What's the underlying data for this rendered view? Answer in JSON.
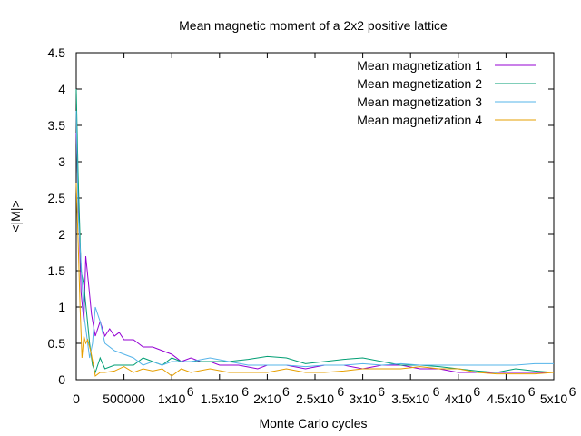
{
  "chart_data": {
    "type": "line",
    "title": "Mean magnetic moment of a 2x2 positive lattice",
    "xlabel": "Monte Carlo cycles",
    "ylabel": "<|M|>",
    "xlim": [
      0,
      5000000
    ],
    "ylim": [
      0,
      4.5
    ],
    "x_ticks": [
      0,
      500000,
      1000000,
      1500000,
      2000000,
      2500000,
      3000000,
      3500000,
      4000000,
      4500000,
      5000000
    ],
    "x_tick_labels": [
      "0",
      "500000",
      "1x10",
      "1.5x10",
      "2x10",
      "2.5x10",
      "3x10",
      "3.5x10",
      "4x10",
      "4.5x10",
      "5x10"
    ],
    "x_tick_exponent": "6",
    "y_ticks": [
      0,
      0.5,
      1,
      1.5,
      2,
      2.5,
      3,
      3.5,
      4,
      4.5
    ],
    "y_tick_labels": [
      "0",
      "0.5",
      "1",
      "1.5",
      "2",
      "2.5",
      "3",
      "3.5",
      "4",
      "4.5"
    ],
    "grid": false,
    "legend_position": "top-right",
    "series": [
      {
        "name": "Mean magnetization 1",
        "color": "#9400d3",
        "x": [
          0,
          20000,
          50000,
          80000,
          100000,
          130000,
          160000,
          200000,
          250000,
          300000,
          350000,
          400000,
          450000,
          500000,
          600000,
          700000,
          800000,
          900000,
          1000000,
          1100000,
          1200000,
          1300000,
          1400000,
          1500000,
          1700000,
          1900000,
          2000000,
          2200000,
          2400000,
          2600000,
          2800000,
          3000000,
          3200000,
          3400000,
          3600000,
          3800000,
          4000000,
          4200000,
          4400000,
          4600000,
          4800000,
          5000000
        ],
        "y": [
          3.4,
          2.6,
          1.2,
          0.8,
          1.7,
          1.3,
          0.9,
          0.6,
          0.8,
          0.6,
          0.7,
          0.6,
          0.65,
          0.55,
          0.55,
          0.45,
          0.45,
          0.4,
          0.35,
          0.25,
          0.3,
          0.25,
          0.25,
          0.2,
          0.2,
          0.15,
          0.2,
          0.2,
          0.15,
          0.2,
          0.2,
          0.15,
          0.2,
          0.2,
          0.15,
          0.15,
          0.1,
          0.1,
          0.1,
          0.1,
          0.1,
          0.1
        ]
      },
      {
        "name": "Mean magnetization 2",
        "color": "#009e73",
        "x": [
          0,
          20000,
          50000,
          80000,
          110000,
          140000,
          170000,
          200000,
          250000,
          300000,
          400000,
          500000,
          600000,
          700000,
          800000,
          900000,
          1000000,
          1100000,
          1200000,
          1400000,
          1600000,
          1800000,
          2000000,
          2200000,
          2400000,
          2600000,
          2800000,
          3000000,
          3200000,
          3400000,
          3600000,
          3800000,
          4000000,
          4200000,
          4400000,
          4600000,
          4800000,
          5000000
        ],
        "y": [
          4.0,
          2.8,
          1.5,
          1.3,
          0.9,
          0.5,
          0.2,
          0.1,
          0.3,
          0.15,
          0.2,
          0.2,
          0.2,
          0.3,
          0.25,
          0.2,
          0.3,
          0.25,
          0.25,
          0.25,
          0.25,
          0.28,
          0.32,
          0.3,
          0.22,
          0.25,
          0.28,
          0.3,
          0.25,
          0.2,
          0.2,
          0.18,
          0.15,
          0.12,
          0.1,
          0.15,
          0.12,
          0.1
        ]
      },
      {
        "name": "Mean magnetization 3",
        "color": "#56b4e9",
        "x": [
          0,
          20000,
          50000,
          80000,
          110000,
          140000,
          170000,
          200000,
          250000,
          300000,
          400000,
          500000,
          600000,
          700000,
          800000,
          900000,
          1000000,
          1200000,
          1400000,
          1600000,
          1800000,
          2000000,
          2200000,
          2400000,
          2600000,
          2800000,
          3000000,
          3200000,
          3400000,
          3600000,
          3800000,
          4000000,
          4200000,
          4400000,
          4600000,
          4800000,
          5000000
        ],
        "y": [
          3.7,
          2.3,
          1.6,
          0.9,
          0.6,
          0.3,
          0.5,
          1.0,
          0.8,
          0.5,
          0.4,
          0.35,
          0.3,
          0.2,
          0.25,
          0.2,
          0.25,
          0.25,
          0.3,
          0.25,
          0.2,
          0.2,
          0.2,
          0.18,
          0.2,
          0.2,
          0.22,
          0.2,
          0.22,
          0.2,
          0.2,
          0.2,
          0.2,
          0.2,
          0.2,
          0.22,
          0.22
        ]
      },
      {
        "name": "Mean magnetization 4",
        "color": "#e69f00",
        "x": [
          0,
          20000,
          40000,
          60000,
          80000,
          100000,
          120000,
          150000,
          180000,
          200000,
          250000,
          300000,
          400000,
          500000,
          600000,
          700000,
          800000,
          900000,
          1000000,
          1100000,
          1200000,
          1400000,
          1600000,
          1800000,
          2000000,
          2200000,
          2400000,
          2600000,
          2800000,
          3000000,
          3200000,
          3400000,
          3600000,
          3800000,
          4000000,
          4200000,
          4400000,
          4600000,
          4800000,
          5000000
        ],
        "y": [
          2.7,
          1.9,
          1.0,
          0.3,
          0.6,
          0.5,
          0.55,
          0.4,
          0.2,
          0.05,
          0.1,
          0.1,
          0.12,
          0.18,
          0.1,
          0.15,
          0.12,
          0.15,
          0.05,
          0.15,
          0.1,
          0.15,
          0.1,
          0.1,
          0.1,
          0.15,
          0.1,
          0.1,
          0.12,
          0.15,
          0.15,
          0.15,
          0.18,
          0.15,
          0.15,
          0.1,
          0.08,
          0.08,
          0.08,
          0.1
        ]
      }
    ]
  }
}
